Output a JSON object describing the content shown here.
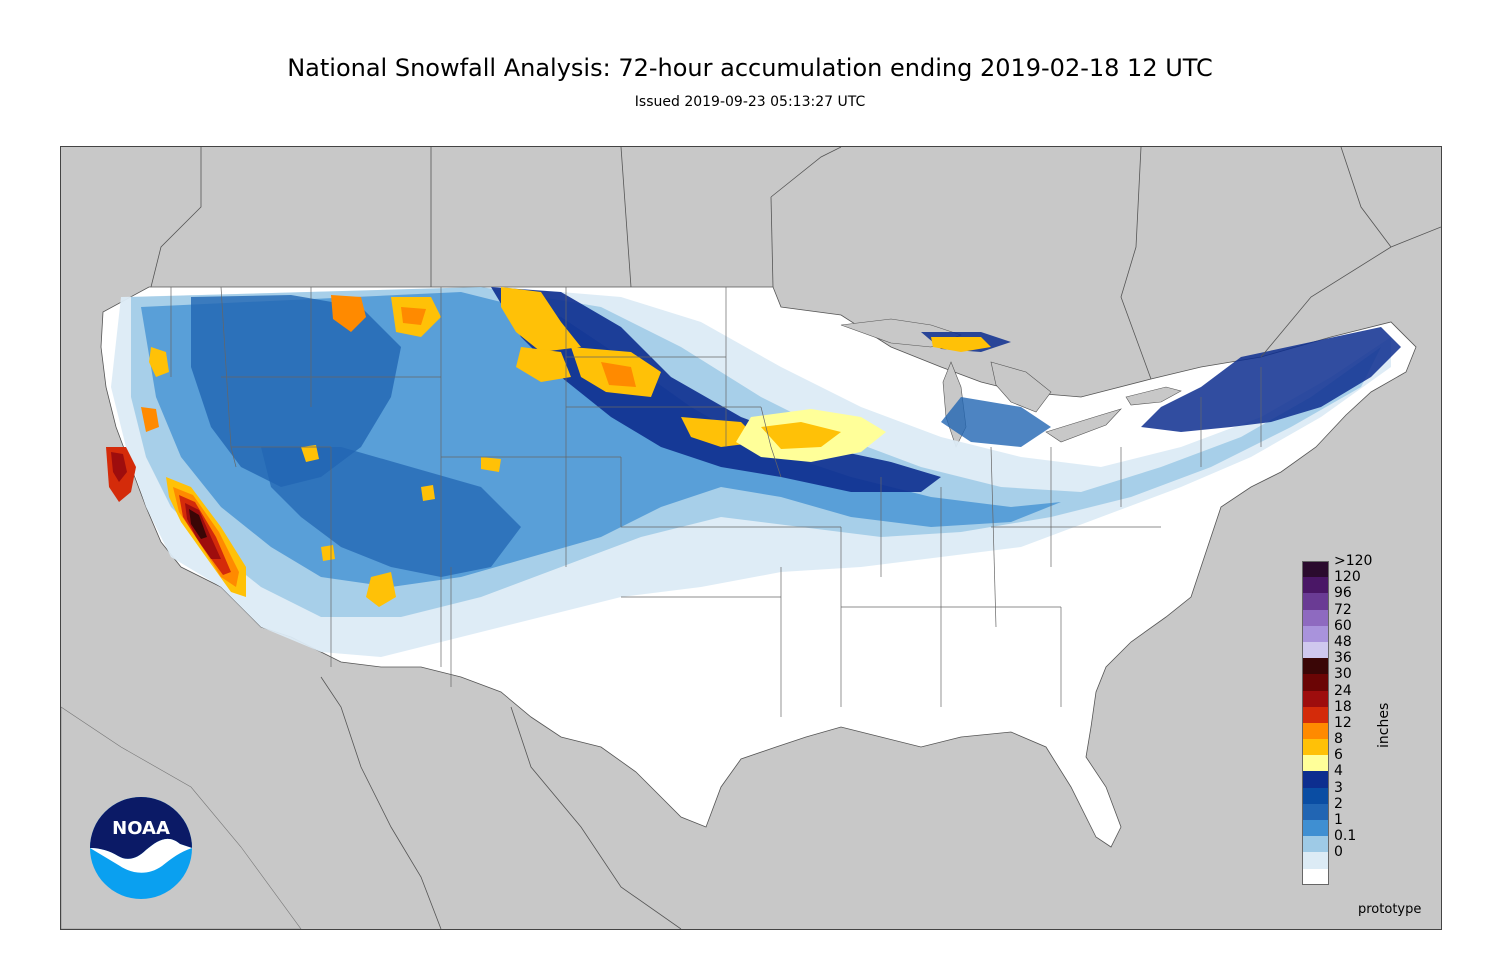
{
  "title": "National Snowfall Analysis: 72-hour accumulation ending 2019-02-18 12 UTC",
  "subtitle": "Issued 2019-09-23 05:13:27 UTC",
  "legend": {
    "units": "inches",
    "entries": [
      {
        "label": ">120",
        "color": "#2b0b2e"
      },
      {
        "label": "120",
        "color": "#4a1766"
      },
      {
        "label": "96",
        "color": "#6a3b94"
      },
      {
        "label": "72",
        "color": "#8e6ac0"
      },
      {
        "label": "60",
        "color": "#a993dc"
      },
      {
        "label": "48",
        "color": "#cfc8ee"
      },
      {
        "label": "36",
        "color": "#3a0606"
      },
      {
        "label": "30",
        "color": "#6b0505"
      },
      {
        "label": "24",
        "color": "#9e0d0d"
      },
      {
        "label": "18",
        "color": "#d42b0a"
      },
      {
        "label": "12",
        "color": "#ff8a00"
      },
      {
        "label": "8",
        "color": "#ffc107"
      },
      {
        "label": "6",
        "color": "#ffff99"
      },
      {
        "label": "4",
        "color": "#0d2e8f"
      },
      {
        "label": "3",
        "color": "#0a4da3"
      },
      {
        "label": "2",
        "color": "#2165b3"
      },
      {
        "label": "1",
        "color": "#3f8fd2"
      },
      {
        "label": "0.1",
        "color": "#9ecae6"
      },
      {
        "label": "0",
        "color": "#dcebf5"
      }
    ],
    "zero_color": "#ffffff"
  },
  "logo": {
    "text": "NOAA",
    "dark_color": "#0b1a66",
    "light_color": "#0aa0f0"
  },
  "footer_note": "prototype",
  "colors": {
    "land_outside": "#c8c8c8",
    "conus_bg": "#ffffff",
    "ocean": "#c8c8c8",
    "border": "#555555"
  }
}
